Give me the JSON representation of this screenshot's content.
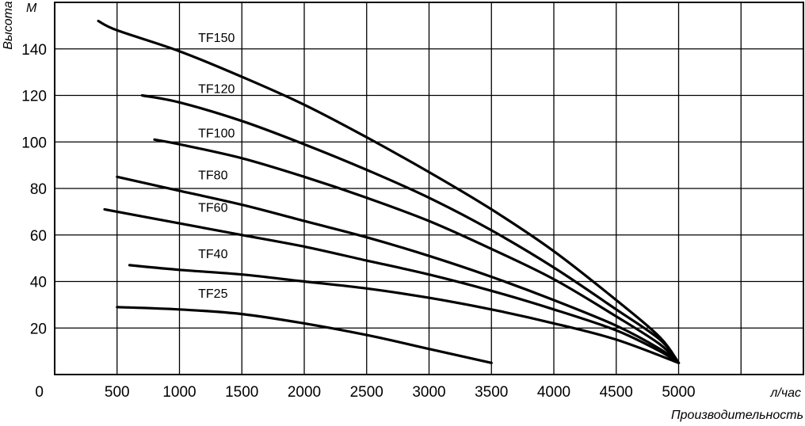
{
  "chart_data": {
    "type": "line",
    "xlabel": "Производительность",
    "x_unit": "л/час",
    "ylabel": "Высота",
    "y_unit": "М",
    "x_ticks": [
      500,
      1000,
      1500,
      2000,
      2500,
      3000,
      3500,
      4000,
      4500,
      5000
    ],
    "y_ticks": [
      20,
      40,
      60,
      80,
      100,
      120,
      140
    ],
    "origin_label": "0",
    "xlim": [
      0,
      6000
    ],
    "ylim": [
      0,
      160
    ],
    "grid": true,
    "series": [
      {
        "name": "TF150",
        "x": [
          350,
          500,
          1000,
          1500,
          2000,
          2500,
          3000,
          3500,
          4000,
          4500,
          4850,
          5000
        ],
        "y": [
          152,
          148,
          139,
          128,
          116,
          102,
          87,
          71,
          53,
          32,
          16,
          5
        ]
      },
      {
        "name": "TF120",
        "x": [
          700,
          1000,
          1500,
          2000,
          2500,
          3000,
          3500,
          4000,
          4500,
          4850,
          5000
        ],
        "y": [
          120,
          117,
          109,
          99,
          88,
          76,
          62,
          46,
          28,
          15,
          5
        ]
      },
      {
        "name": "TF100",
        "x": [
          800,
          1000,
          1500,
          2000,
          2500,
          3000,
          3500,
          4000,
          4500,
          4850,
          5000
        ],
        "y": [
          101,
          99,
          93,
          85,
          76,
          66,
          54,
          41,
          25,
          13,
          5
        ]
      },
      {
        "name": "TF80",
        "x": [
          500,
          1000,
          1500,
          2000,
          2500,
          3000,
          3500,
          4000,
          4500,
          4850,
          5000
        ],
        "y": [
          85,
          79,
          73,
          66,
          59,
          51,
          42,
          32,
          21,
          11,
          5
        ]
      },
      {
        "name": "TF60",
        "x": [
          400,
          1000,
          1500,
          2000,
          2500,
          3000,
          3500,
          4000,
          4500,
          4850,
          5000
        ],
        "y": [
          71,
          65,
          60,
          55,
          49,
          43,
          36,
          28,
          19,
          10,
          5
        ]
      },
      {
        "name": "TF40",
        "x": [
          600,
          1000,
          1500,
          2000,
          2500,
          3000,
          3500,
          4000,
          4500,
          5000
        ],
        "y": [
          47,
          45,
          43,
          40,
          37,
          33,
          28,
          22,
          15,
          5
        ]
      },
      {
        "name": "TF25",
        "x": [
          500,
          1000,
          1500,
          2000,
          2500,
          3000,
          3500
        ],
        "y": [
          29,
          28,
          26,
          22,
          17,
          11,
          5
        ]
      }
    ],
    "series_label_x": 1150,
    "series_label_y": {
      "TF150": 143,
      "TF120": 121,
      "TF100": 102,
      "TF80": 84,
      "TF60": 70,
      "TF40": 50,
      "TF25": 33
    }
  }
}
